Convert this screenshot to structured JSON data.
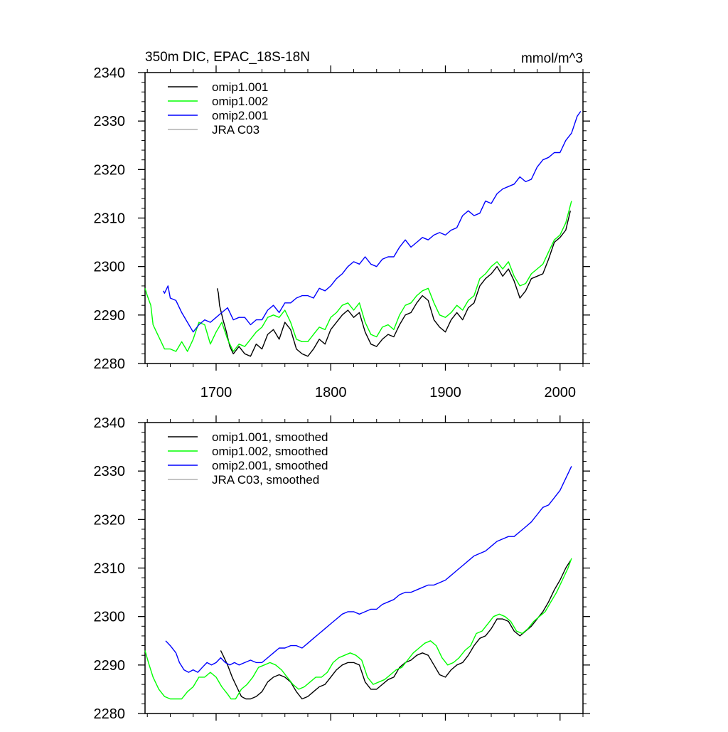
{
  "chart_data": [
    {
      "type": "line",
      "title": "350m DIC, EPAC_18S-18N",
      "units": "mmol/m^3",
      "xlim": [
        1638,
        2020
      ],
      "ylim": [
        2280,
        2340
      ],
      "x_ticks": [
        1700,
        1800,
        1900,
        2000
      ],
      "x_tick_labels": [
        "1700",
        "1800",
        "1900",
        "2000"
      ],
      "y_ticks": [
        2280,
        2290,
        2300,
        2310,
        2320,
        2330,
        2340
      ],
      "y_tick_labels": [
        "2280",
        "2290",
        "2300",
        "2310",
        "2320",
        "2330",
        "2340"
      ],
      "legend_position": "top-left",
      "grid": false,
      "series": [
        {
          "name": "omip1.001",
          "color": "#000000",
          "x": [
            1701,
            1702,
            1703,
            1706,
            1709,
            1712,
            1715,
            1720,
            1725,
            1730,
            1735,
            1740,
            1745,
            1750,
            1755,
            1760,
            1765,
            1770,
            1775,
            1780,
            1785,
            1790,
            1795,
            1800,
            1805,
            1810,
            1815,
            1820,
            1825,
            1830,
            1835,
            1840,
            1845,
            1850,
            1855,
            1860,
            1865,
            1870,
            1875,
            1880,
            1885,
            1890,
            1895,
            1900,
            1905,
            1910,
            1915,
            1920,
            1925,
            1930,
            1935,
            1940,
            1945,
            1950,
            1955,
            1960,
            1965,
            1970,
            1975,
            1980,
            1985,
            1990,
            1995,
            2000,
            2005,
            2009
          ],
          "y": [
            2295.5,
            2294.5,
            2292,
            2289,
            2286.5,
            2283.5,
            2282,
            2283.5,
            2282,
            2281.5,
            2284,
            2283,
            2286,
            2287,
            2285,
            2288.5,
            2287,
            2283,
            2282,
            2281.5,
            2283,
            2285,
            2284,
            2287,
            2288.5,
            2290,
            2291,
            2289.5,
            2290.5,
            2286.5,
            2284,
            2283.5,
            2285,
            2286,
            2285.5,
            2288,
            2290,
            2290.5,
            2292.5,
            2294,
            2293,
            2289,
            2287.5,
            2286.5,
            2289,
            2290.5,
            2289,
            2291.5,
            2292.5,
            2296,
            2297.5,
            2298.5,
            2300,
            2298,
            2299.5,
            2297,
            2293.5,
            2295,
            2297.5,
            2298,
            2298.5,
            2301.5,
            2305,
            2306,
            2307.5,
            2311.5
          ]
        },
        {
          "name": "omip1.002",
          "color": "#00ff00",
          "x": [
            1638,
            1640,
            1643,
            1645,
            1648,
            1652,
            1655,
            1660,
            1665,
            1670,
            1675,
            1680,
            1685,
            1690,
            1695,
            1700,
            1705,
            1710,
            1712,
            1715,
            1720,
            1725,
            1730,
            1735,
            1740,
            1745,
            1750,
            1755,
            1760,
            1765,
            1770,
            1775,
            1780,
            1785,
            1790,
            1795,
            1800,
            1805,
            1810,
            1815,
            1820,
            1825,
            1830,
            1835,
            1840,
            1845,
            1850,
            1855,
            1860,
            1865,
            1870,
            1875,
            1880,
            1885,
            1890,
            1895,
            1900,
            1905,
            1910,
            1915,
            1920,
            1925,
            1930,
            1935,
            1940,
            1945,
            1950,
            1955,
            1960,
            1965,
            1970,
            1975,
            1980,
            1985,
            1990,
            1995,
            2000,
            2005,
            2010
          ],
          "y": [
            2295.5,
            2294,
            2292,
            2288,
            2286.5,
            2284.5,
            2283,
            2283,
            2282.5,
            2284.5,
            2282.5,
            2285,
            2288.5,
            2288,
            2284,
            2286.5,
            2288.5,
            2285,
            2284,
            2282.5,
            2284,
            2283.5,
            2285,
            2286.5,
            2287.5,
            2289.5,
            2290,
            2289.5,
            2291,
            2288.5,
            2285,
            2284.5,
            2284.5,
            2286,
            2287.5,
            2287,
            2289.5,
            2290.5,
            2292,
            2292.5,
            2291,
            2292.5,
            2288.5,
            2286,
            2285.5,
            2287.5,
            2288,
            2287,
            2290,
            2292,
            2292.5,
            2294,
            2295,
            2295.5,
            2292.5,
            2290,
            2289.5,
            2290.5,
            2292,
            2291,
            2293,
            2294,
            2297.5,
            2298.5,
            2300,
            2301,
            2299.5,
            2301,
            2298,
            2296,
            2296.5,
            2298.5,
            2299.5,
            2300.5,
            2303,
            2305.5,
            2306.5,
            2309,
            2313.5
          ]
        },
        {
          "name": "omip2.001",
          "color": "#0000ff",
          "x": [
            1654,
            1655,
            1658,
            1660,
            1665,
            1670,
            1675,
            1680,
            1685,
            1690,
            1695,
            1700,
            1705,
            1710,
            1715,
            1720,
            1725,
            1730,
            1735,
            1740,
            1745,
            1750,
            1755,
            1760,
            1765,
            1770,
            1775,
            1780,
            1785,
            1790,
            1795,
            1800,
            1805,
            1810,
            1815,
            1820,
            1825,
            1830,
            1835,
            1840,
            1845,
            1850,
            1855,
            1860,
            1865,
            1870,
            1875,
            1880,
            1885,
            1890,
            1895,
            1900,
            1905,
            1910,
            1915,
            1920,
            1925,
            1930,
            1935,
            1940,
            1945,
            1950,
            1955,
            1960,
            1965,
            1970,
            1975,
            1980,
            1985,
            1990,
            1995,
            2000,
            2005,
            2010,
            2015,
            2018
          ],
          "y": [
            2295,
            2294.5,
            2296,
            2293.5,
            2293,
            2290.5,
            2288.5,
            2286.5,
            2288,
            2289,
            2288.5,
            2289.5,
            2290.5,
            2291.5,
            2289,
            2289.5,
            2289.5,
            2288,
            2289,
            2289,
            2291,
            2292,
            2290.5,
            2292.5,
            2292.5,
            2293.5,
            2294,
            2294,
            2293.5,
            2295.5,
            2295,
            2296,
            2297.5,
            2298.5,
            2300,
            2301,
            2300.5,
            2302,
            2300.5,
            2300,
            2301.5,
            2302,
            2302,
            2304,
            2305.5,
            2304,
            2305,
            2306,
            2305.5,
            2306.5,
            2307,
            2306.5,
            2307.5,
            2308,
            2310.5,
            2311.5,
            2310.5,
            2311,
            2313.5,
            2313,
            2315,
            2316,
            2316.5,
            2317,
            2318.5,
            2317.5,
            2318,
            2320.5,
            2322,
            2322.5,
            2323.5,
            2323.5,
            2326,
            2327.5,
            2331,
            2332
          ]
        },
        {
          "name": "JRA C03",
          "color": "#b0b0b0",
          "x": [],
          "y": []
        }
      ]
    },
    {
      "type": "line",
      "title": "",
      "units": "",
      "xlim": [
        1638,
        2020
      ],
      "ylim": [
        2280,
        2340
      ],
      "x_ticks": [
        1700,
        1800,
        1900,
        2000
      ],
      "x_tick_labels": [],
      "y_ticks": [
        2280,
        2290,
        2300,
        2310,
        2320,
        2330,
        2340
      ],
      "y_tick_labels": [
        "2280",
        "2290",
        "2300",
        "2310",
        "2320",
        "2330",
        "2340"
      ],
      "legend_position": "top-left",
      "grid": false,
      "series": [
        {
          "name": "omip1.001, smoothed",
          "color": "#000000",
          "x": [
            1704,
            1706,
            1710,
            1714,
            1718,
            1722,
            1726,
            1730,
            1735,
            1740,
            1745,
            1750,
            1755,
            1760,
            1765,
            1770,
            1775,
            1780,
            1785,
            1790,
            1795,
            1800,
            1805,
            1810,
            1815,
            1820,
            1825,
            1830,
            1835,
            1840,
            1845,
            1850,
            1855,
            1860,
            1865,
            1870,
            1875,
            1880,
            1885,
            1890,
            1895,
            1900,
            1905,
            1910,
            1915,
            1920,
            1925,
            1930,
            1935,
            1940,
            1945,
            1950,
            1955,
            1960,
            1965,
            1970,
            1975,
            1980,
            1985,
            1990,
            1995,
            2000,
            2005,
            2009
          ],
          "y": [
            2293,
            2292,
            2290,
            2287.5,
            2285.5,
            2283.5,
            2283,
            2283,
            2283.5,
            2284.5,
            2286.5,
            2287.5,
            2288,
            2287.5,
            2286.5,
            2284.5,
            2283,
            2283.5,
            2284.5,
            2285.5,
            2286,
            2287.5,
            2289,
            2290,
            2290.5,
            2290.5,
            2290,
            2286.5,
            2285,
            2285,
            2286,
            2287,
            2287.5,
            2289.5,
            2290.5,
            2291,
            2292,
            2292.5,
            2292,
            2290,
            2288,
            2287.5,
            2289,
            2290,
            2290.5,
            2292,
            2294,
            2295.5,
            2296,
            2297.5,
            2299.5,
            2299.5,
            2299,
            2297,
            2296,
            2297,
            2298,
            2299.5,
            2301,
            2303,
            2305.5,
            2307.5,
            2310,
            2311.5
          ]
        },
        {
          "name": "omip1.002, smoothed",
          "color": "#00ff00",
          "x": [
            1638,
            1641,
            1645,
            1650,
            1655,
            1660,
            1665,
            1670,
            1675,
            1680,
            1685,
            1690,
            1695,
            1700,
            1705,
            1710,
            1713,
            1717,
            1722,
            1727,
            1732,
            1737,
            1742,
            1747,
            1752,
            1757,
            1762,
            1767,
            1772,
            1777,
            1782,
            1787,
            1792,
            1797,
            1802,
            1807,
            1812,
            1817,
            1822,
            1827,
            1832,
            1837,
            1842,
            1847,
            1852,
            1857,
            1862,
            1867,
            1872,
            1877,
            1882,
            1887,
            1892,
            1897,
            1902,
            1907,
            1912,
            1917,
            1922,
            1927,
            1932,
            1937,
            1942,
            1947,
            1952,
            1957,
            1962,
            1967,
            1972,
            1977,
            1982,
            1987,
            1992,
            1997,
            2002,
            2007,
            2010
          ],
          "y": [
            2293,
            2290.5,
            2287.5,
            2285,
            2283.5,
            2283,
            2283,
            2283,
            2284.5,
            2285.5,
            2287.5,
            2287.5,
            2288.5,
            2287.5,
            2285.5,
            2284,
            2283,
            2283,
            2285,
            2286,
            2287.5,
            2289.5,
            2290,
            2290.5,
            2290,
            2289,
            2287.5,
            2286,
            2285,
            2285.5,
            2286.5,
            2287.5,
            2287.5,
            2288.5,
            2290.5,
            2291.5,
            2292,
            2292.5,
            2292,
            2291,
            2287.5,
            2286,
            2286.5,
            2287,
            2288,
            2289,
            2289.5,
            2291,
            2292.5,
            2293.5,
            2294.5,
            2295,
            2294,
            2291.5,
            2290,
            2290.5,
            2291.5,
            2293,
            2294,
            2296.5,
            2297,
            2298.5,
            2300,
            2300.5,
            2300,
            2299,
            2297,
            2296.5,
            2297.5,
            2299,
            2300,
            2301,
            2303,
            2305,
            2307.5,
            2310,
            2312
          ]
        },
        {
          "name": "omip2.001, smoothed",
          "color": "#0000ff",
          "x": [
            1656,
            1660,
            1665,
            1668,
            1672,
            1676,
            1680,
            1684,
            1688,
            1692,
            1696,
            1700,
            1704,
            1708,
            1712,
            1716,
            1720,
            1725,
            1730,
            1735,
            1740,
            1745,
            1750,
            1755,
            1760,
            1765,
            1770,
            1775,
            1780,
            1785,
            1790,
            1795,
            1800,
            1805,
            1810,
            1815,
            1820,
            1825,
            1830,
            1835,
            1840,
            1845,
            1850,
            1855,
            1860,
            1865,
            1870,
            1875,
            1880,
            1885,
            1890,
            1895,
            1900,
            1905,
            1910,
            1915,
            1920,
            1925,
            1930,
            1935,
            1940,
            1945,
            1950,
            1955,
            1960,
            1965,
            1970,
            1975,
            1980,
            1985,
            1990,
            1995,
            2000,
            2005,
            2010
          ],
          "y": [
            2295,
            2294,
            2292.5,
            2290.5,
            2289,
            2288.5,
            2289,
            2288.5,
            2289.5,
            2290.5,
            2290,
            2290.5,
            2291.5,
            2290.5,
            2290,
            2290.5,
            2290,
            2290.5,
            2291,
            2290.5,
            2290.5,
            2291.5,
            2292.5,
            2293.5,
            2293.5,
            2294,
            2294,
            2293.5,
            2294.5,
            2295.5,
            2296.5,
            2297.5,
            2298.5,
            2299.5,
            2300.5,
            2301,
            2301,
            2300.5,
            2301,
            2301.5,
            2301.5,
            2302.5,
            2303,
            2303.5,
            2304.5,
            2305,
            2305,
            2305.5,
            2306,
            2306.5,
            2306.5,
            2307,
            2307.5,
            2308.5,
            2309.5,
            2310.5,
            2311.5,
            2312.5,
            2313,
            2313.5,
            2314.5,
            2315.5,
            2316,
            2316.5,
            2316.5,
            2317.5,
            2318.5,
            2319.5,
            2321,
            2322.5,
            2323,
            2324.5,
            2326,
            2328.5,
            2331
          ]
        },
        {
          "name": "JRA C03, smoothed",
          "color": "#b0b0b0",
          "x": [],
          "y": []
        }
      ]
    }
  ]
}
